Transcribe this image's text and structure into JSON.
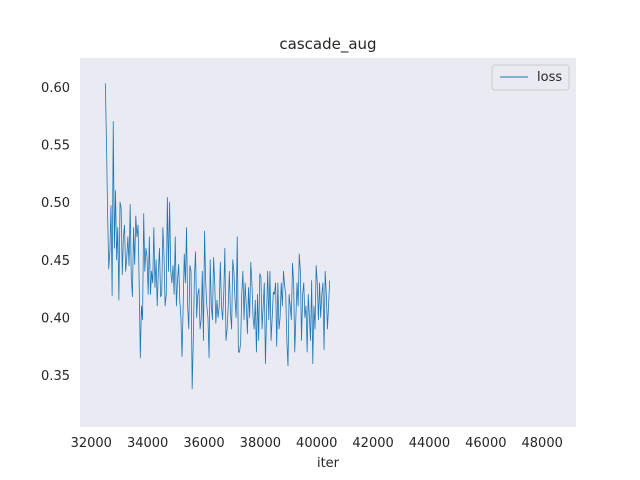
{
  "chart_data": {
    "type": "line",
    "title": "cascade_aug",
    "xlabel": "iter",
    "ylabel": "",
    "xlim": [
      31600,
      49200
    ],
    "ylim": [
      0.305,
      0.625
    ],
    "xticks": [
      32000,
      34000,
      36000,
      38000,
      40000,
      42000,
      44000,
      46000,
      48000
    ],
    "yticks": [
      0.35,
      0.4,
      0.45,
      0.5,
      0.55,
      0.6
    ],
    "ytick_labels": [
      "0.35",
      "0.40",
      "0.45",
      "0.50",
      "0.55",
      "0.60"
    ],
    "grid": false,
    "background": "#eaeaf2",
    "legend": {
      "placement": "top-right"
    },
    "series": [
      {
        "name": "loss",
        "color": "#1f77b4",
        "x_start": 32500,
        "x_step": 40,
        "values": [
          0.603,
          0.55,
          0.49,
          0.442,
          0.458,
          0.497,
          0.419,
          0.57,
          0.46,
          0.51,
          0.45,
          0.478,
          0.415,
          0.5,
          0.495,
          0.437,
          0.47,
          0.48,
          0.44,
          0.452,
          0.47,
          0.445,
          0.498,
          0.435,
          0.418,
          0.478,
          0.446,
          0.488,
          0.47,
          0.48,
          0.43,
          0.365,
          0.41,
          0.398,
          0.49,
          0.44,
          0.46,
          0.452,
          0.42,
          0.47,
          0.42,
          0.44,
          0.43,
          0.478,
          0.426,
          0.45,
          0.41,
          0.44,
          0.46,
          0.418,
          0.42,
          0.478,
          0.455,
          0.41,
          0.42,
          0.504,
          0.44,
          0.5,
          0.44,
          0.43,
          0.445,
          0.42,
          0.47,
          0.41,
          0.432,
          0.446,
          0.415,
          0.4,
          0.366,
          0.41,
          0.455,
          0.43,
          0.478,
          0.41,
          0.39,
          0.445,
          0.44,
          0.338,
          0.38,
          0.435,
          0.457,
          0.4,
          0.42,
          0.425,
          0.39,
          0.398,
          0.44,
          0.38,
          0.475,
          0.43,
          0.41,
          0.4,
          0.365,
          0.45,
          0.41,
          0.398,
          0.452,
          0.43,
          0.395,
          0.415,
          0.4,
          0.41,
          0.448,
          0.41,
          0.398,
          0.42,
          0.46,
          0.38,
          0.39,
          0.41,
          0.44,
          0.404,
          0.39,
          0.45,
          0.44,
          0.416,
          0.4,
          0.47,
          0.37,
          0.37,
          0.378,
          0.42,
          0.44,
          0.398,
          0.43,
          0.41,
          0.386,
          0.426,
          0.4,
          0.448,
          0.43,
          0.4,
          0.39,
          0.415,
          0.37,
          0.42,
          0.38,
          0.438,
          0.435,
          0.39,
          0.41,
          0.43,
          0.36,
          0.403,
          0.44,
          0.398,
          0.44,
          0.38,
          0.4,
          0.422,
          0.42,
          0.43,
          0.375,
          0.43,
          0.39,
          0.4,
          0.43,
          0.41,
          0.44,
          0.428,
          0.42,
          0.38,
          0.358,
          0.42,
          0.41,
          0.398,
          0.447,
          0.43,
          0.37,
          0.4,
          0.43,
          0.41,
          0.455,
          0.44,
          0.38,
          0.42,
          0.43,
          0.4,
          0.41,
          0.37,
          0.42,
          0.4,
          0.38,
          0.432,
          0.36,
          0.41,
          0.39,
          0.445,
          0.43,
          0.398,
          0.43,
          0.4,
          0.42,
          0.43,
          0.372,
          0.44,
          0.42,
          0.39,
          0.41,
          0.432
        ]
      }
    ]
  }
}
